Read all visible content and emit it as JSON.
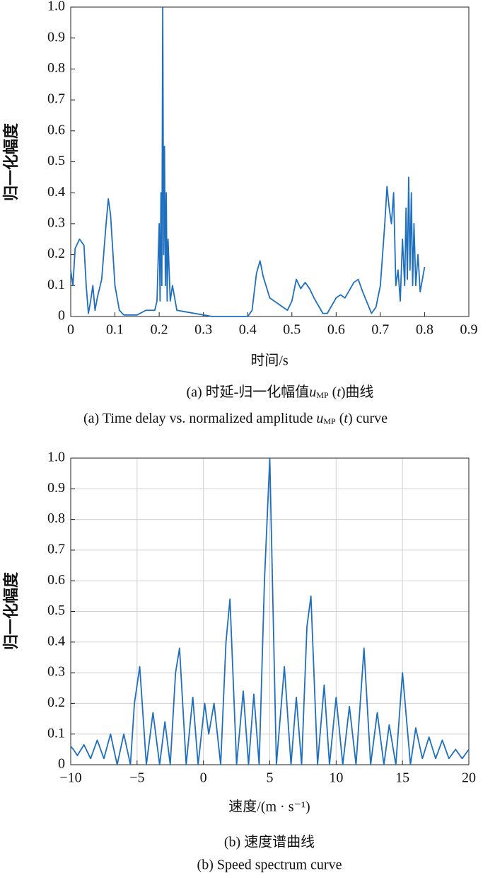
{
  "chart_data": [
    {
      "type": "line",
      "ylabel": "归一化幅度",
      "xlabel": "时间/s",
      "caption_cn": {
        "prefix": "(a) 时延-归一化幅值",
        "var": "u",
        "sub": "MP",
        "open": " (",
        "arg": "t",
        "close": ")曲线"
      },
      "caption_en": {
        "prefix": "(a) Time delay vs. normalized amplitude ",
        "var": "u",
        "sub": "MP",
        "open": " (",
        "arg": "t",
        "close": ") curve"
      },
      "color": "#1f6fbf",
      "grid": false,
      "xlim": [
        0,
        0.9
      ],
      "xticks": [
        0,
        0.1,
        0.2,
        0.3,
        0.4,
        0.5,
        0.6,
        0.7,
        0.8,
        0.9
      ],
      "ylim": [
        0,
        1
      ],
      "yticks": [
        0,
        0.1,
        0.2,
        0.3,
        0.4,
        0.5,
        0.6,
        0.7,
        0.8,
        0.9,
        {
          "value": 1,
          "label": "1.0"
        }
      ],
      "x": [
        0,
        0.005,
        0.01,
        0.02,
        0.03,
        0.035,
        0.04,
        0.045,
        0.05,
        0.055,
        0.06,
        0.07,
        0.08,
        0.085,
        0.09,
        0.1,
        0.11,
        0.12,
        0.15,
        0.17,
        0.19,
        0.195,
        0.2,
        0.202,
        0.204,
        0.206,
        0.208,
        0.21,
        0.212,
        0.214,
        0.216,
        0.218,
        0.22,
        0.225,
        0.23,
        0.24,
        0.26,
        0.28,
        0.3,
        0.32,
        0.4,
        0.41,
        0.42,
        0.428,
        0.435,
        0.45,
        0.47,
        0.49,
        0.5,
        0.51,
        0.52,
        0.53,
        0.54,
        0.55,
        0.57,
        0.58,
        0.6,
        0.61,
        0.62,
        0.64,
        0.65,
        0.66,
        0.68,
        0.69,
        0.7,
        0.71,
        0.715,
        0.72,
        0.725,
        0.73,
        0.735,
        0.74,
        0.745,
        0.75,
        0.755,
        0.758,
        0.761,
        0.764,
        0.767,
        0.77,
        0.773,
        0.776,
        0.78,
        0.785,
        0.79,
        0.795,
        0.8
      ],
      "values": [
        0.15,
        0.1,
        0.22,
        0.25,
        0.23,
        0.1,
        0.01,
        0.05,
        0.1,
        0.02,
        0.06,
        0.12,
        0.3,
        0.38,
        0.33,
        0.1,
        0.02,
        0.005,
        0.005,
        0.02,
        0.02,
        0.05,
        0.3,
        0.05,
        0.4,
        0.1,
        1.0,
        0.2,
        0.55,
        0.1,
        0.4,
        0.05,
        0.25,
        0.05,
        0.1,
        0.02,
        0.015,
        0.01,
        0.005,
        0,
        0,
        0.02,
        0.14,
        0.18,
        0.13,
        0.06,
        0.04,
        0.02,
        0.05,
        0.12,
        0.09,
        0.11,
        0.09,
        0.06,
        0.01,
        0.01,
        0.06,
        0.07,
        0.06,
        0.11,
        0.12,
        0.08,
        0.01,
        0.03,
        0.1,
        0.3,
        0.42,
        0.35,
        0.3,
        0.4,
        0.1,
        0.15,
        0.05,
        0.25,
        0.1,
        0.35,
        0.12,
        0.45,
        0.15,
        0.4,
        0.1,
        0.3,
        0.1,
        0.2,
        0.08,
        0.12,
        0.16
      ]
    },
    {
      "type": "line",
      "ylabel": "归一化幅度",
      "xlabel": "速度/(m · s⁻¹)",
      "caption_cn": {
        "text": "(b) 速度谱曲线"
      },
      "caption_en": {
        "text": "(b) Speed spectrum curve"
      },
      "color": "#1f6fbf",
      "grid": true,
      "xlim": [
        -10,
        20
      ],
      "xticks": [
        {
          "value": -10,
          "label": "−10"
        },
        {
          "value": -5,
          "label": "−5"
        },
        0,
        5,
        10,
        15,
        20
      ],
      "ylim": [
        0,
        1
      ],
      "yticks": [
        0,
        0.1,
        0.2,
        0.3,
        0.4,
        0.5,
        0.6,
        0.7,
        0.8,
        0.9,
        {
          "value": 1,
          "label": "1.0"
        }
      ],
      "x": [
        -10,
        -9.8,
        -9.5,
        -9,
        -8.5,
        -8,
        -7.5,
        -7,
        -6.5,
        -6,
        -5.5,
        -5.2,
        -4.8,
        -4.3,
        -3.8,
        -3.3,
        -2.9,
        -2.5,
        -2.1,
        -1.8,
        -1.3,
        -0.8,
        -0.4,
        0.1,
        0.4,
        0.8,
        1.3,
        1.7,
        2,
        2.5,
        3,
        3.4,
        3.8,
        4.2,
        4.6,
        5,
        5.5,
        6.1,
        6.6,
        7,
        7.4,
        7.8,
        8.1,
        8.6,
        9.1,
        9.5,
        10,
        10.5,
        11,
        11.5,
        12.1,
        12.6,
        13.1,
        13.6,
        14,
        14.5,
        15,
        15.6,
        16,
        16.5,
        17,
        17.5,
        18,
        18.5,
        19,
        19.5,
        20
      ],
      "values": [
        0.06,
        0.05,
        0.03,
        0.065,
        0.02,
        0.08,
        0.02,
        0.1,
        0.0,
        0.1,
        0.0,
        0.2,
        0.32,
        0.0,
        0.17,
        0.0,
        0.14,
        0.0,
        0.3,
        0.38,
        0.0,
        0.22,
        0.0,
        0.2,
        0.1,
        0.2,
        0.0,
        0.4,
        0.54,
        0.0,
        0.24,
        0.0,
        0.23,
        0.0,
        0.6,
        1.0,
        0.0,
        0.32,
        0.0,
        0.22,
        0.0,
        0.45,
        0.55,
        0.0,
        0.26,
        0.0,
        0.22,
        0.0,
        0.19,
        0.0,
        0.38,
        0.0,
        0.17,
        0.0,
        0.13,
        0.0,
        0.3,
        0.0,
        0.12,
        0.02,
        0.09,
        0.02,
        0.08,
        0.02,
        0.05,
        0.02,
        0.05
      ]
    }
  ]
}
